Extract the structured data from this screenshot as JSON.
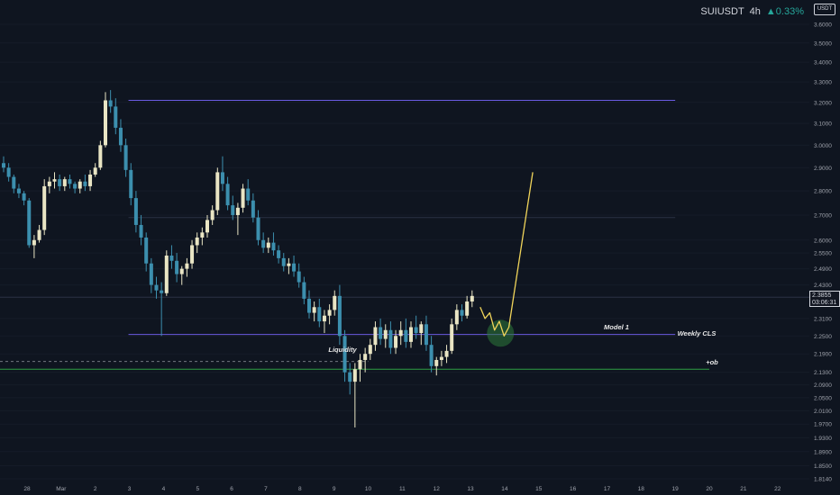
{
  "header": {
    "symbol": "SUIUSDT",
    "timeframe": "4h",
    "change": "▲0.33%",
    "change_color": "#26a69a"
  },
  "currency_badge": "USDT",
  "current_price": {
    "price": "2.3855",
    "countdown": "03:06:31"
  },
  "colors": {
    "bg": "#0f1520",
    "up": "#e9e5c4",
    "down": "#3c8fae",
    "liquidity": "#6a5ae0",
    "ob": "#2ea043",
    "projection": "#f0d45a",
    "circle": "#2d7a3a",
    "axis_text": "#a0a4ad"
  },
  "annotations": [
    {
      "text": "Liquidity",
      "level": 2.25
    },
    {
      "text": "Model 1",
      "level": 2.27
    },
    {
      "text": "Weekly CLS",
      "level": 2.255
    },
    {
      "text": "+ob",
      "level": 2.14
    }
  ],
  "chart_data": {
    "type": "candlestick",
    "x_tick_labels": [
      "28",
      "Mar",
      "2",
      "3",
      "4",
      "5",
      "6",
      "7",
      "8",
      "9",
      "10",
      "11",
      "12",
      "13",
      "14",
      "15",
      "16",
      "17",
      "18",
      "19",
      "20",
      "21",
      "22"
    ],
    "y_tick_labels": [
      "3.6000",
      "3.5000",
      "3.4000",
      "3.3000",
      "3.2000",
      "3.1000",
      "3.0000",
      "2.9000",
      "2.8000",
      "2.7000",
      "2.6000",
      "2.5500",
      "2.4900",
      "2.4300",
      "2.3855",
      "2.3100",
      "2.2500",
      "2.1900",
      "2.1300",
      "2.0900",
      "2.0500",
      "2.0100",
      "1.9700",
      "1.9300",
      "1.8900",
      "1.8500",
      "1.8140"
    ],
    "y_scale": "log",
    "ylim": [
      1.81,
      3.65
    ],
    "levels": [
      {
        "name": "liquidity-high",
        "price": 3.21,
        "x_from": "3",
        "x_to": "19",
        "style": "solid"
      },
      {
        "name": "mid-range",
        "price": 2.69,
        "x_from": "3",
        "x_to": "19",
        "style": "solid-faint"
      },
      {
        "name": "weekly-cls",
        "price": 2.255,
        "x_from": "3",
        "x_to": "19",
        "style": "solid"
      },
      {
        "name": "liquidity-low",
        "price": 2.165,
        "x_from": "26",
        "x_to": "10",
        "style": "dashed"
      },
      {
        "name": "ob",
        "price": 2.14,
        "x_from": "26",
        "x_to": "20",
        "style": "solid"
      },
      {
        "name": "current",
        "price": 2.3855,
        "x_from": "26",
        "x_to": "22",
        "style": "faint"
      }
    ],
    "candles": [
      [
        2.92,
        2.95,
        2.88,
        2.9
      ],
      [
        2.9,
        2.92,
        2.84,
        2.86
      ],
      [
        2.86,
        2.87,
        2.79,
        2.81
      ],
      [
        2.81,
        2.83,
        2.77,
        2.79
      ],
      [
        2.79,
        2.8,
        2.74,
        2.76
      ],
      [
        2.76,
        2.77,
        2.57,
        2.58
      ],
      [
        2.58,
        2.62,
        2.53,
        2.6
      ],
      [
        2.6,
        2.66,
        2.59,
        2.64
      ],
      [
        2.64,
        2.85,
        2.62,
        2.82
      ],
      [
        2.82,
        2.86,
        2.79,
        2.84
      ],
      [
        2.84,
        2.88,
        2.81,
        2.85
      ],
      [
        2.85,
        2.87,
        2.8,
        2.82
      ],
      [
        2.82,
        2.86,
        2.8,
        2.85
      ],
      [
        2.85,
        2.87,
        2.81,
        2.83
      ],
      [
        2.83,
        2.84,
        2.79,
        2.81
      ],
      [
        2.81,
        2.85,
        2.79,
        2.84
      ],
      [
        2.84,
        2.87,
        2.8,
        2.82
      ],
      [
        2.82,
        2.89,
        2.8,
        2.87
      ],
      [
        2.87,
        2.92,
        2.86,
        2.9
      ],
      [
        2.9,
        3.02,
        2.89,
        3.0
      ],
      [
        3.0,
        3.25,
        2.99,
        3.21
      ],
      [
        3.21,
        3.26,
        3.15,
        3.18
      ],
      [
        3.18,
        3.22,
        3.05,
        3.08
      ],
      [
        3.08,
        3.12,
        2.97,
        3.0
      ],
      [
        3.0,
        3.03,
        2.86,
        2.89
      ],
      [
        2.89,
        2.92,
        2.74,
        2.77
      ],
      [
        2.77,
        2.8,
        2.63,
        2.66
      ],
      [
        2.66,
        2.7,
        2.58,
        2.61
      ],
      [
        2.61,
        2.63,
        2.48,
        2.51
      ],
      [
        2.51,
        2.53,
        2.4,
        2.43
      ],
      [
        2.43,
        2.46,
        2.38,
        2.41
      ],
      [
        2.41,
        2.44,
        2.25,
        2.4
      ],
      [
        2.4,
        2.56,
        2.39,
        2.54
      ],
      [
        2.54,
        2.58,
        2.49,
        2.52
      ],
      [
        2.52,
        2.55,
        2.44,
        2.47
      ],
      [
        2.47,
        2.5,
        2.43,
        2.49
      ],
      [
        2.49,
        2.53,
        2.46,
        2.51
      ],
      [
        2.51,
        2.6,
        2.49,
        2.58
      ],
      [
        2.58,
        2.63,
        2.55,
        2.61
      ],
      [
        2.61,
        2.65,
        2.58,
        2.63
      ],
      [
        2.63,
        2.7,
        2.61,
        2.68
      ],
      [
        2.68,
        2.74,
        2.66,
        2.72
      ],
      [
        2.72,
        2.9,
        2.7,
        2.88
      ],
      [
        2.88,
        2.95,
        2.8,
        2.83
      ],
      [
        2.83,
        2.86,
        2.72,
        2.74
      ],
      [
        2.74,
        2.78,
        2.68,
        2.7
      ],
      [
        2.7,
        2.75,
        2.62,
        2.73
      ],
      [
        2.73,
        2.83,
        2.71,
        2.81
      ],
      [
        2.81,
        2.85,
        2.74,
        2.76
      ],
      [
        2.76,
        2.79,
        2.67,
        2.69
      ],
      [
        2.69,
        2.72,
        2.58,
        2.6
      ],
      [
        2.6,
        2.63,
        2.55,
        2.57
      ],
      [
        2.57,
        2.61,
        2.55,
        2.59
      ],
      [
        2.59,
        2.63,
        2.54,
        2.56
      ],
      [
        2.56,
        2.58,
        2.51,
        2.53
      ],
      [
        2.53,
        2.55,
        2.48,
        2.5
      ],
      [
        2.5,
        2.53,
        2.47,
        2.51
      ],
      [
        2.51,
        2.54,
        2.46,
        2.48
      ],
      [
        2.48,
        2.51,
        2.42,
        2.44
      ],
      [
        2.44,
        2.46,
        2.36,
        2.38
      ],
      [
        2.38,
        2.41,
        2.31,
        2.33
      ],
      [
        2.33,
        2.37,
        2.3,
        2.35
      ],
      [
        2.35,
        2.38,
        2.28,
        2.3
      ],
      [
        2.3,
        2.34,
        2.26,
        2.32
      ],
      [
        2.32,
        2.36,
        2.29,
        2.34
      ],
      [
        2.34,
        2.41,
        2.32,
        2.39
      ],
      [
        2.39,
        2.43,
        2.22,
        2.25
      ],
      [
        2.25,
        2.27,
        2.1,
        2.13
      ],
      [
        2.13,
        2.16,
        2.06,
        2.1
      ],
      [
        2.1,
        2.16,
        1.96,
        2.14
      ],
      [
        2.14,
        2.19,
        2.1,
        2.17
      ],
      [
        2.17,
        2.21,
        2.13,
        2.19
      ],
      [
        2.19,
        2.24,
        2.17,
        2.22
      ],
      [
        2.22,
        2.3,
        2.2,
        2.28
      ],
      [
        2.28,
        2.31,
        2.22,
        2.24
      ],
      [
        2.24,
        2.29,
        2.21,
        2.27
      ],
      [
        2.27,
        2.3,
        2.19,
        2.21
      ],
      [
        2.21,
        2.27,
        2.19,
        2.25
      ],
      [
        2.25,
        2.3,
        2.22,
        2.27
      ],
      [
        2.27,
        2.31,
        2.21,
        2.23
      ],
      [
        2.23,
        2.3,
        2.21,
        2.28
      ],
      [
        2.28,
        2.32,
        2.24,
        2.26
      ],
      [
        2.26,
        2.3,
        2.22,
        2.29
      ],
      [
        2.29,
        2.32,
        2.2,
        2.22
      ],
      [
        2.22,
        2.25,
        2.13,
        2.15
      ],
      [
        2.15,
        2.18,
        2.12,
        2.17
      ],
      [
        2.17,
        2.2,
        2.15,
        2.18
      ],
      [
        2.18,
        2.22,
        2.16,
        2.2
      ],
      [
        2.2,
        2.31,
        2.19,
        2.29
      ],
      [
        2.29,
        2.36,
        2.27,
        2.34
      ],
      [
        2.34,
        2.36,
        2.3,
        2.32
      ],
      [
        2.32,
        2.39,
        2.31,
        2.37
      ],
      [
        2.37,
        2.41,
        2.35,
        2.39
      ]
    ],
    "projection": [
      [
        2.35,
        0
      ],
      [
        2.31,
        1
      ],
      [
        2.33,
        2
      ],
      [
        2.27,
        3
      ],
      [
        2.3,
        4
      ],
      [
        2.25,
        5
      ],
      [
        2.28,
        6
      ],
      [
        2.88,
        11
      ]
    ]
  }
}
